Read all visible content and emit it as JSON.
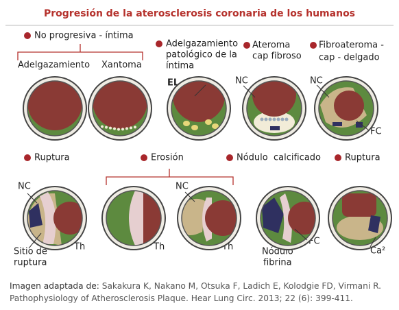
{
  "header": {
    "title": "Progresión de la aterosclerosis coronaria de los humanos"
  },
  "row1": {
    "group": "No progresiva - íntima",
    "adelgazamiento": "Adelgazamiento",
    "xantoma": "Xantoma",
    "pathological": [
      "Adelgazamiento",
      "patológico de la",
      "íntima"
    ],
    "el": "EL",
    "ateroma": [
      "Ateroma",
      "cap fibroso"
    ],
    "ateroma_nc": "NC",
    "fibroateroma": [
      "Fibroateroma -",
      "cap - delgado"
    ],
    "fibroateroma_nc": "NC",
    "fibroateroma_fc": "FC"
  },
  "row2": {
    "ruptura": "Ruptura",
    "ruptura_nc": "NC",
    "sitio": [
      "Sitio de",
      "ruptura"
    ],
    "ruptura_th": "Th",
    "erosion": "Erosión",
    "erosion_th1": "Th",
    "erosion_nc": "NC",
    "erosion_th2": "Th",
    "nodulo": "Nódulo  calcificado",
    "nodulo_fc": "FC",
    "nodulo_fibrina": [
      "Nódulo",
      "fibrina"
    ],
    "ruptura2": "Ruptura",
    "ca": "Ca²"
  },
  "caption": {
    "lead": "Imagen adaptada de:",
    "reference": "Sakakura K, Nakano M, Otsuka F, Ladich E, Kolodgie FD, Virmani R. Pathophysiology of Atherosclerosis Plaque. Hear Lung Circ. 2013; 22 (6): 399-411."
  }
}
